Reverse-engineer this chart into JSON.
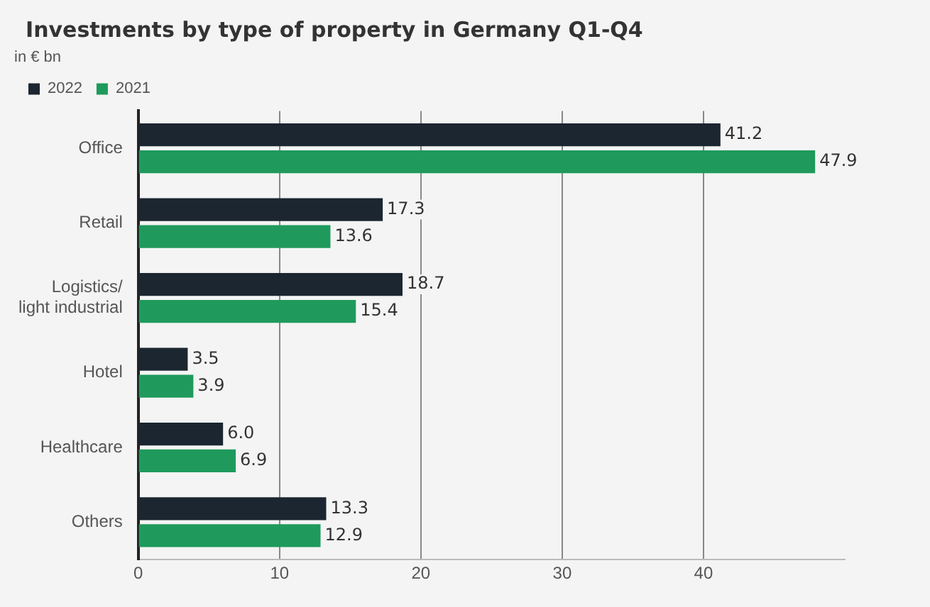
{
  "chart_data": {
    "type": "bar",
    "orientation": "horizontal",
    "title": "Investments by type of property in Germany Q1-Q4",
    "subtitle": "in € bn",
    "categories": [
      "Office",
      "Retail",
      "Logistics/\nlight industrial",
      "Hotel",
      "Healthcare",
      "Others"
    ],
    "series": [
      {
        "name": "2022",
        "color": "#1b2631",
        "values": [
          41.2,
          17.3,
          18.7,
          3.5,
          6.0,
          13.3
        ],
        "value_labels": [
          "41.2",
          "17.3",
          "18.7",
          "3.5",
          "6.0",
          "13.3"
        ]
      },
      {
        "name": "2021",
        "color": "#1f9a5c",
        "values": [
          47.9,
          13.6,
          15.4,
          3.9,
          6.9,
          12.9
        ],
        "value_labels": [
          "47.9",
          "13.6",
          "15.4",
          "3.9",
          "6.9",
          "12.9"
        ]
      }
    ],
    "xlim": [
      0,
      50
    ],
    "xticks": [
      0,
      10,
      20,
      30,
      40
    ],
    "grid": "x",
    "legend": "top left"
  }
}
